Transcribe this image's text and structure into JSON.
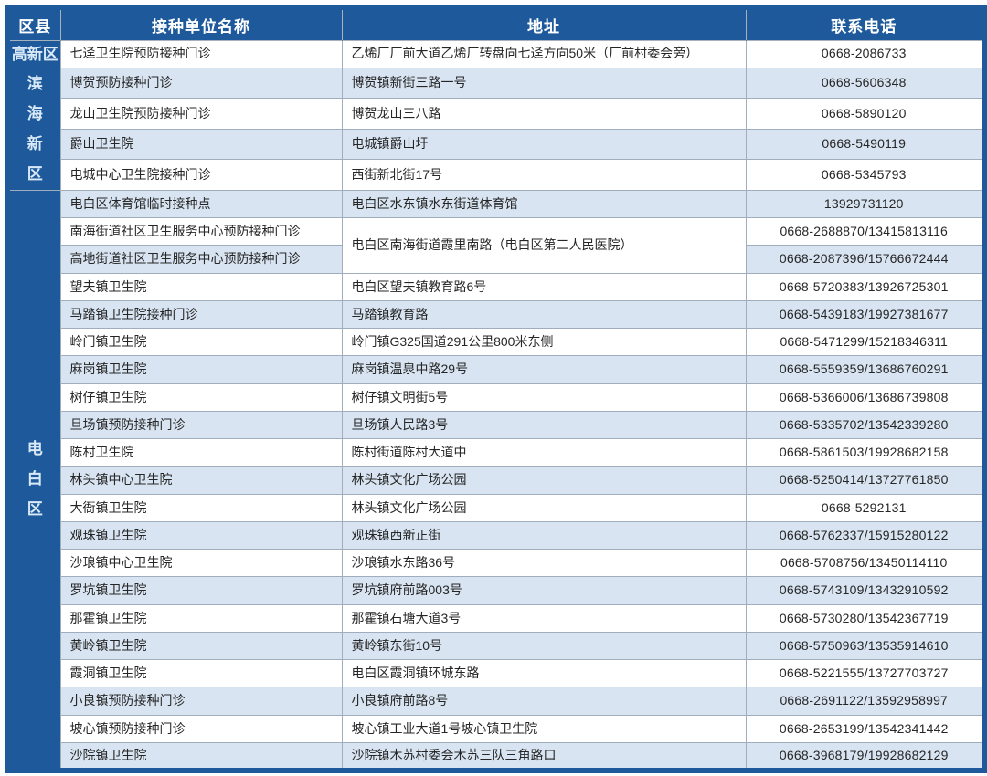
{
  "table": {
    "headers": [
      "区县",
      "接种单位名称",
      "地址",
      "联系电话"
    ],
    "colors": {
      "accent_blue": "#1e5a9b",
      "stripe_blue": "#d8e4f1",
      "grid_gray": "#9fadbc",
      "region_label_text": "#d9e9f8"
    },
    "regions": [
      {
        "name": "高新区",
        "vertical": false,
        "rows": [
          {
            "unit": "七迳卫生院预防接种门诊",
            "address": "乙烯厂厂前大道乙烯厂转盘向七迳方向50米（厂前村委会旁）",
            "phone": "0668-2086733"
          }
        ]
      },
      {
        "name": "滨海新区",
        "vertical": true,
        "rows": [
          {
            "unit": "博贺预防接种门诊",
            "address": "博贺镇新街三路一号",
            "phone": "0668-5606348"
          },
          {
            "unit": "龙山卫生院预防接种门诊",
            "address": "博贺龙山三八路",
            "phone": "0668-5890120"
          },
          {
            "unit": "爵山卫生院",
            "address": "电城镇爵山圩",
            "phone": "0668-5490119"
          },
          {
            "unit": "电城中心卫生院接种门诊",
            "address": "西街新北街17号",
            "phone": "0668-5345793"
          }
        ]
      },
      {
        "name": "电白区",
        "vertical": true,
        "rows": [
          {
            "unit": "电白区体育馆临时接种点",
            "address": "电白区水东镇水东街道体育馆",
            "phone": "13929731120"
          },
          {
            "unit": "南海街道社区卫生服务中心预防接种门诊",
            "address": "电白区南海街道霞里南路（电白区第二人民医院）",
            "address_rowspan": 2,
            "phone": "0668-2688870/13415813116"
          },
          {
            "unit": "高地街道社区卫生服务中心预防接种门诊",
            "address": null,
            "phone": "0668-2087396/15766672444"
          },
          {
            "unit": "望夫镇卫生院",
            "address": "电白区望夫镇教育路6号",
            "phone": "0668-5720383/13926725301"
          },
          {
            "unit": "马踏镇卫生院接种门诊",
            "address": "马踏镇教育路",
            "phone": "0668-5439183/19927381677"
          },
          {
            "unit": "岭门镇卫生院",
            "address": "岭门镇G325国道291公里800米东侧",
            "phone": "0668-5471299/15218346311"
          },
          {
            "unit": "麻岗镇卫生院",
            "address": "麻岗镇温泉中路29号",
            "phone": "0668-5559359/13686760291"
          },
          {
            "unit": "树仔镇卫生院",
            "address": "树仔镇文明街5号",
            "phone": "0668-5366006/13686739808"
          },
          {
            "unit": "旦场镇预防接种门诊",
            "address": "旦场镇人民路3号",
            "phone": "0668-5335702/13542339280"
          },
          {
            "unit": "陈村卫生院",
            "address": "陈村街道陈村大道中",
            "phone": "0668-5861503/19928682158"
          },
          {
            "unit": "林头镇中心卫生院",
            "address": "林头镇文化广场公园",
            "phone": "0668-5250414/13727761850"
          },
          {
            "unit": "大衙镇卫生院",
            "address": "林头镇文化广场公园",
            "phone": "0668-5292131"
          },
          {
            "unit": "观珠镇卫生院",
            "address": "观珠镇西新正街",
            "phone": "0668-5762337/15915280122"
          },
          {
            "unit": "沙琅镇中心卫生院",
            "address": "沙琅镇水东路36号",
            "phone": "0668-5708756/13450114110"
          },
          {
            "unit": "罗坑镇卫生院",
            "address": "罗坑镇府前路003号",
            "phone": "0668-5743109/13432910592"
          },
          {
            "unit": "那霍镇卫生院",
            "address": "那霍镇石塘大道3号",
            "phone": "0668-5730280/13542367719"
          },
          {
            "unit": "黄岭镇卫生院",
            "address": "黄岭镇东街10号",
            "phone": "0668-5750963/13535914610"
          },
          {
            "unit": "霞洞镇卫生院",
            "address": "电白区霞洞镇环城东路",
            "phone": "0668-5221555/13727703727"
          },
          {
            "unit": "小良镇预防接种门诊",
            "address": "小良镇府前路8号",
            "phone": "0668-2691122/13592958997"
          },
          {
            "unit": "坡心镇预防接种门诊",
            "address": "坡心镇工业大道1号坡心镇卫生院",
            "phone": "0668-2653199/13542341442"
          },
          {
            "unit": "沙院镇卫生院",
            "address": "沙院镇木苏村委会木苏三队三角路口",
            "phone": "0668-3968179/19928682129"
          }
        ]
      }
    ]
  }
}
